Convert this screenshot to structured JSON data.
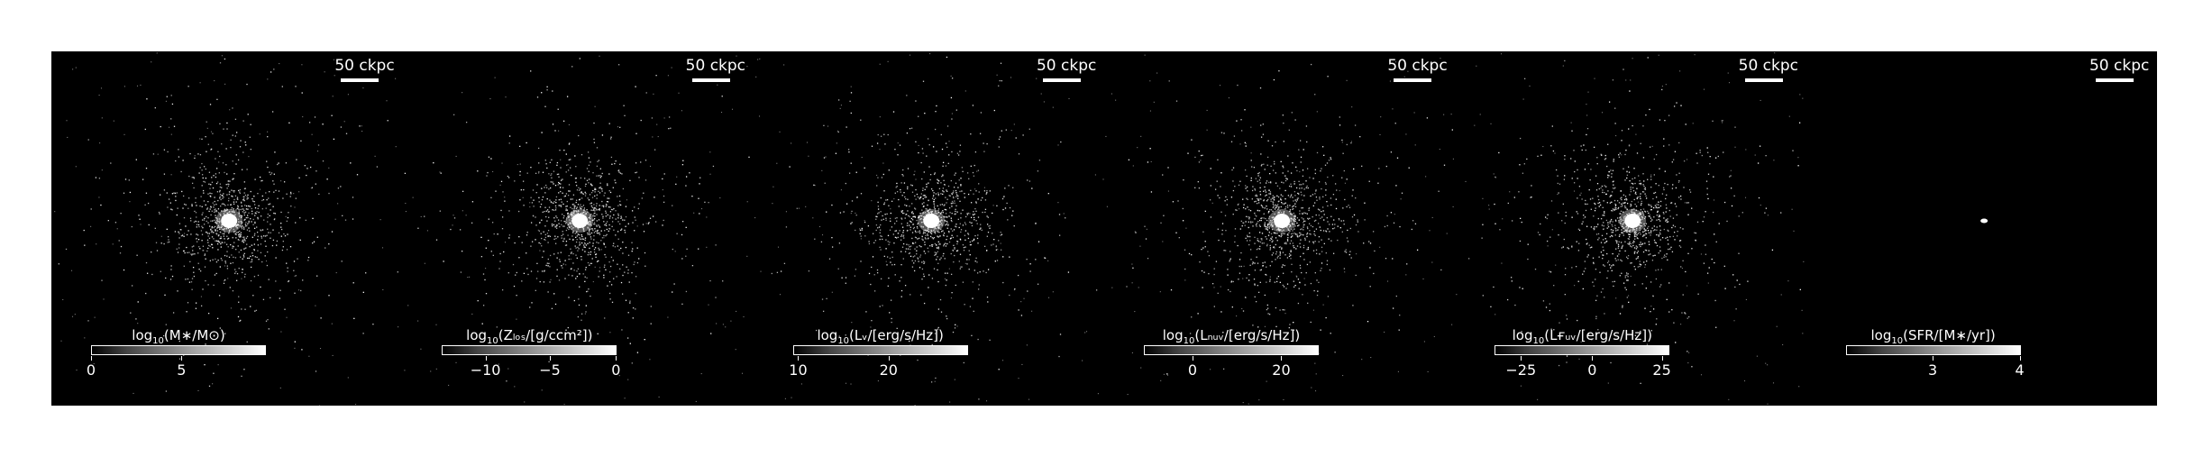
{
  "panels": [
    {
      "id": "stellar-mass",
      "scalebar": "50 ckpc",
      "cbar_label": {
        "pre": "log",
        "sub": "10",
        "post": "(M∗/M⊙)"
      },
      "ticks": [
        {
          "label": "0",
          "frac": 0.0
        },
        {
          "label": "5",
          "frac": 0.52
        }
      ],
      "has_field": true
    },
    {
      "id": "metal-column",
      "scalebar": "50 ckpc",
      "cbar_label": {
        "pre": "log",
        "sub": "10",
        "post": "(Zₗₒₛ/[g/ccm²])"
      },
      "ticks": [
        {
          "label": "−10",
          "frac": 0.25
        },
        {
          "label": "−5",
          "frac": 0.62
        },
        {
          "label": "0",
          "frac": 1.0
        }
      ],
      "has_field": true
    },
    {
      "id": "v-luminosity",
      "scalebar": "50 ckpc",
      "cbar_label": {
        "pre": "log",
        "sub": "10",
        "post": "(Lᵥ/[erg/s/Hz])"
      },
      "ticks": [
        {
          "label": "10",
          "frac": 0.03
        },
        {
          "label": "20",
          "frac": 0.55
        }
      ],
      "has_field": true
    },
    {
      "id": "nuv-luminosity",
      "scalebar": "50 ckpc",
      "cbar_label": {
        "pre": "log",
        "sub": "10",
        "post": "(Lₙᵤᵥ/[erg/s/Hz])"
      },
      "ticks": [
        {
          "label": "0",
          "frac": 0.28
        },
        {
          "label": "20",
          "frac": 0.79
        }
      ],
      "has_field": true
    },
    {
      "id": "fuv-luminosity",
      "scalebar": "50 ckpc",
      "cbar_label": {
        "pre": "log",
        "sub": "10",
        "post": "(Lғᵤᵥ/[erg/s/Hz])"
      },
      "ticks": [
        {
          "label": "−25",
          "frac": 0.15
        },
        {
          "label": "0",
          "frac": 0.56
        },
        {
          "label": "25",
          "frac": 0.96
        }
      ],
      "has_field": true
    },
    {
      "id": "sfr",
      "scalebar": "50 ckpc",
      "cbar_label": {
        "pre": "log",
        "sub": "10",
        "post": "(SFR/[M∗/yr])"
      },
      "ticks": [
        {
          "label": "3",
          "frac": 0.5
        },
        {
          "label": "4",
          "frac": 1.0
        }
      ],
      "has_field": false
    }
  ],
  "colors": {
    "background": "#000000",
    "foreground": "#ffffff",
    "page": "#ffffff"
  }
}
